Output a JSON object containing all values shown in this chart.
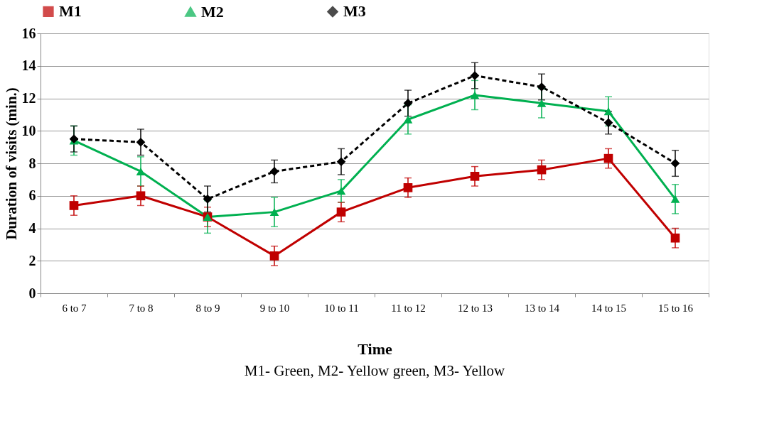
{
  "chart_data": {
    "type": "line",
    "xlabel": "Time",
    "ylabel": "Duration of visits (min.)",
    "categories": [
      "6 to 7",
      "7 to 8",
      "8 to 9",
      "9 to 10",
      "10 to 11",
      "11 to 12",
      "12 to 13",
      "13 to 14",
      "14 to 15",
      "15 to 16"
    ],
    "series": [
      {
        "name": "M1",
        "color": "#c00000",
        "marker": "square",
        "line_style": "solid",
        "values": [
          5.4,
          6.0,
          4.7,
          2.3,
          5.0,
          6.5,
          7.2,
          7.6,
          8.3,
          3.4
        ],
        "errors": [
          0.6,
          0.6,
          0.6,
          0.6,
          0.6,
          0.6,
          0.6,
          0.6,
          0.6,
          0.6
        ]
      },
      {
        "name": "M2",
        "color": "#00b050",
        "marker": "triangle",
        "line_style": "solid",
        "values": [
          9.4,
          7.5,
          4.7,
          5.0,
          6.3,
          10.7,
          12.2,
          11.7,
          11.2,
          5.8
        ],
        "errors": [
          0.9,
          0.9,
          1.0,
          0.9,
          0.7,
          0.9,
          0.9,
          0.9,
          0.9,
          0.9
        ]
      },
      {
        "name": "M3",
        "color": "#000000",
        "marker": "diamond",
        "line_style": "dashed",
        "values": [
          9.5,
          9.3,
          5.8,
          7.5,
          8.1,
          11.7,
          13.4,
          12.7,
          10.5,
          8.0
        ],
        "errors": [
          0.8,
          0.8,
          0.8,
          0.7,
          0.8,
          0.8,
          0.8,
          0.8,
          0.7,
          0.8
        ]
      }
    ],
    "ylim": [
      0,
      16
    ],
    "yticks": [
      0,
      2,
      4,
      6,
      8,
      10,
      12,
      14,
      16
    ],
    "grid": "y",
    "legend": "top",
    "annotations": [
      "M1- Green, M2- Yellow green, M3- Yellow"
    ]
  }
}
